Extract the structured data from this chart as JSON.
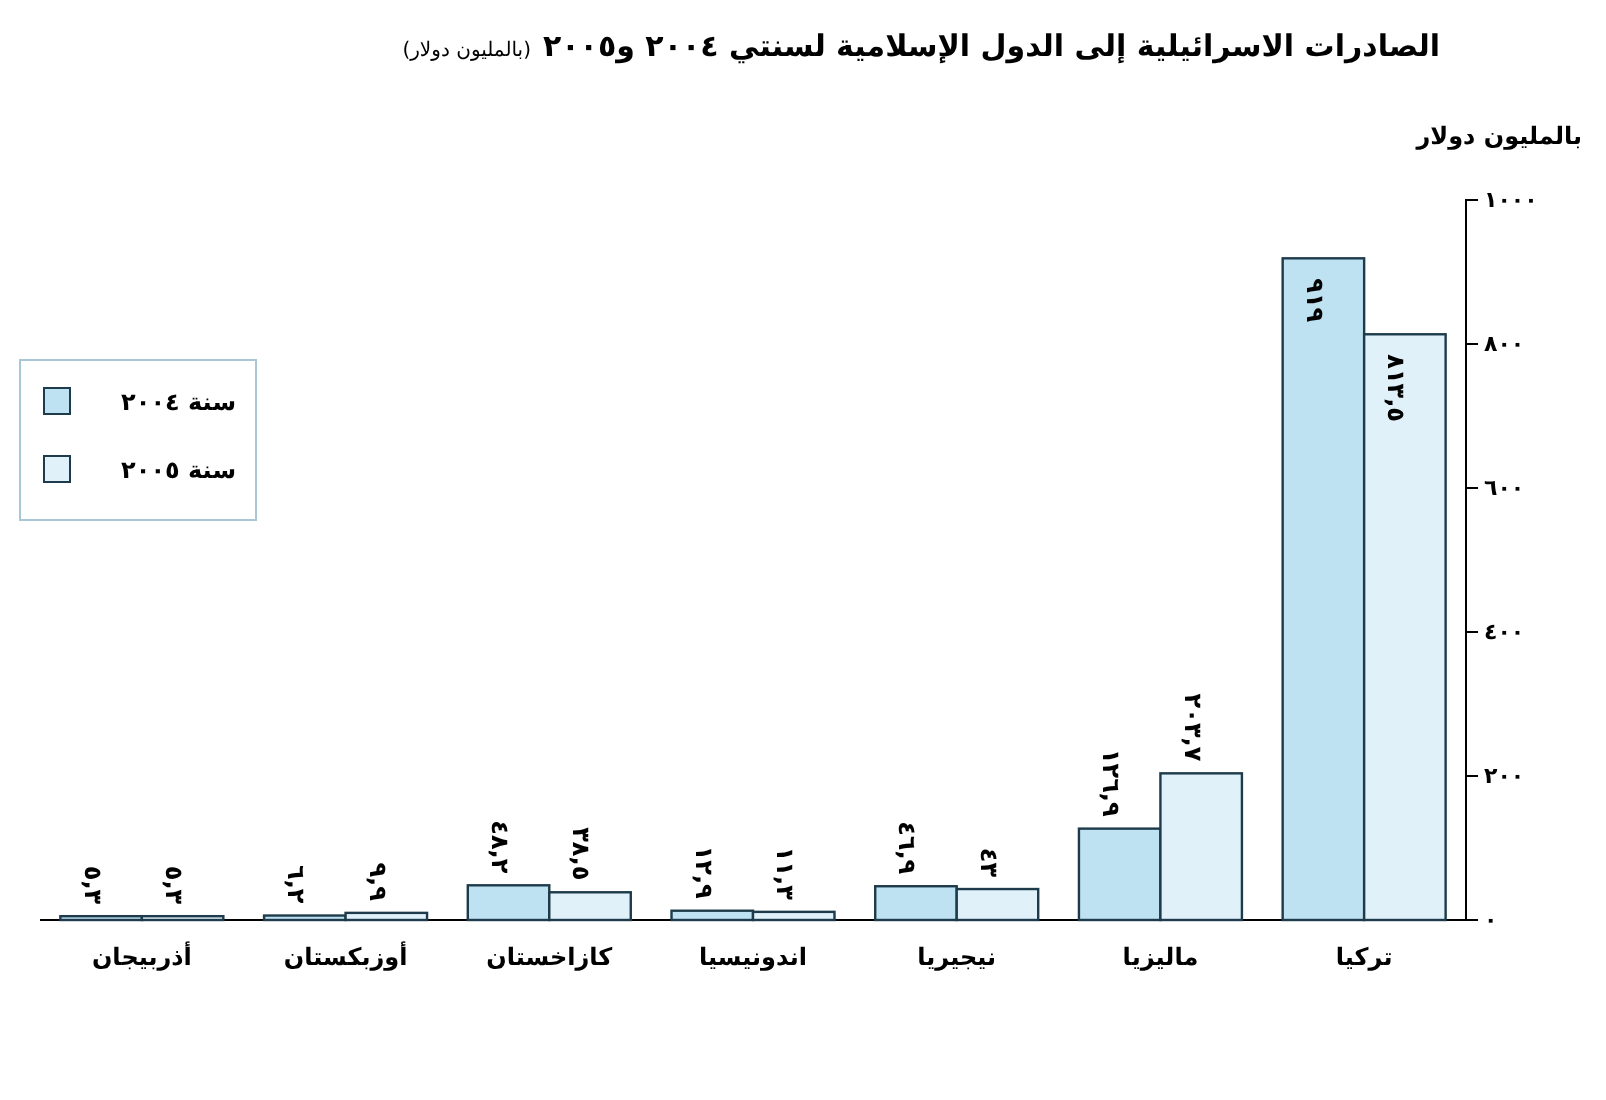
{
  "chart_data": {
    "type": "bar",
    "title": "الصادرات الاسرائيلية إلى الدول الإسلامية لسنتي ٢٠٠٤ و٢٠٠٥",
    "subtitle": "(بالمليون دولار)",
    "ylabel": "بالمليون دولار",
    "categories": [
      "أذربيجان",
      "أوزبكستان",
      "كازاخستان",
      "اندونيسيا",
      "نيجيريا",
      "ماليزيا",
      "تركيا"
    ],
    "series": [
      {
        "name": "سنة ٢٠٠٤",
        "color": "#bfe2f2",
        "values": [
          5.3,
          6.2,
          48.2,
          12.9,
          46.9,
          126.9,
          919
        ],
        "value_labels": [
          "٥,٣",
          "٦,٢",
          "٤٨,٢",
          "١٢,٩",
          "٤٦,٩",
          "١٢٦,٩",
          "٩١٩"
        ]
      },
      {
        "name": "سنة ٢٠٠٥",
        "color": "#e0f1f9",
        "values": [
          5.3,
          9.9,
          38.5,
          11.3,
          43,
          203.7,
          813.5
        ],
        "value_labels": [
          "٥,٣",
          "٩,٩",
          "٣٨,٥",
          "١١,٣",
          "٤٣",
          "٢٠٣,٧",
          "٨١٣,٥"
        ]
      }
    ],
    "ylim": [
      0,
      1000
    ],
    "yticks": [
      {
        "value": 0,
        "label": "٠"
      },
      {
        "value": 200,
        "label": "٢٠٠"
      },
      {
        "value": 400,
        "label": "٤٠٠"
      },
      {
        "value": 600,
        "label": "٦٠٠"
      },
      {
        "value": 800,
        "label": "٨٠٠"
      },
      {
        "value": 1000,
        "label": "١٠٠٠"
      }
    ],
    "grid": false,
    "legend": "left"
  }
}
